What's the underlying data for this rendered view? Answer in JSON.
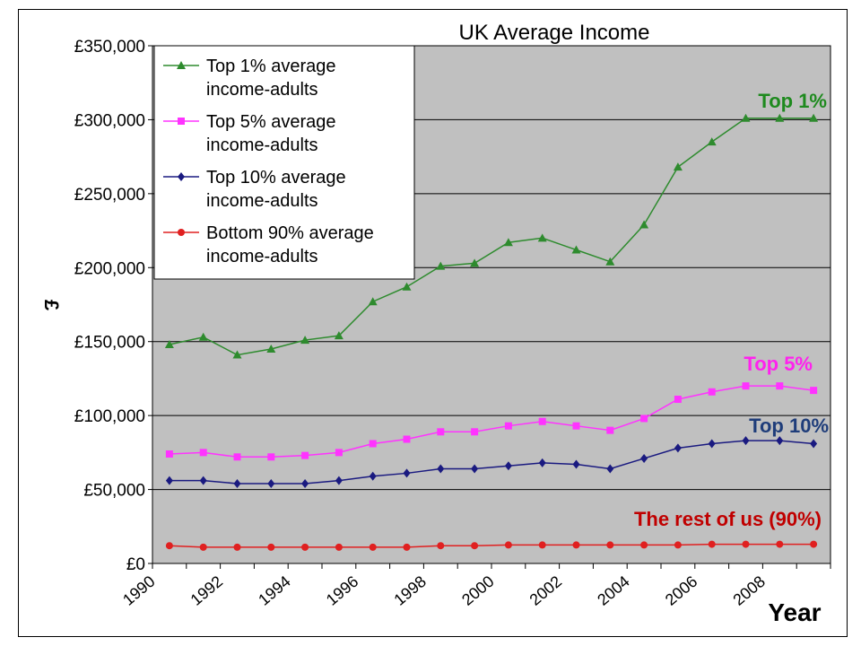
{
  "chart_data": {
    "type": "line",
    "title": "UK Average Income",
    "xlabel": "Year",
    "ylabel": "£",
    "ylim": [
      0,
      350000
    ],
    "xlim": [
      1990,
      2010
    ],
    "yticks": [
      "£0",
      "£50,000",
      "£100,000",
      "£150,000",
      "£200,000",
      "£250,000",
      "£300,000",
      "£350,000"
    ],
    "xticks": [
      "1990",
      "1992",
      "1994",
      "1996",
      "1998",
      "2000",
      "2002",
      "2004",
      "2006",
      "2008"
    ],
    "grid": true,
    "plot_background": "#c0c0c0",
    "legend_position": "top-left",
    "x": [
      1990.5,
      1991.5,
      1992.5,
      1993.5,
      1994.5,
      1995.5,
      1996.5,
      1997.5,
      1998.5,
      1999.5,
      2000.5,
      2001.5,
      2002.5,
      2003.5,
      2004.5,
      2005.5,
      2006.5,
      2007.5,
      2008.5,
      2009.5
    ],
    "series": [
      {
        "name": "Top 1% average income-adults",
        "legend_lines": [
          "Top 1% average",
          "income-adults"
        ],
        "annotation": "Top 1%",
        "color": "#2e8b2e",
        "label_color": "#1e8a1e",
        "marker": "triangle",
        "values": [
          148000,
          153000,
          141000,
          145000,
          151000,
          154000,
          177000,
          187000,
          201000,
          203000,
          217000,
          220000,
          212000,
          204000,
          229000,
          268000,
          285000,
          301000,
          301000,
          301000
        ]
      },
      {
        "name": "Top 5% average income-adults",
        "legend_lines": [
          "Top 5% average",
          "income-adults"
        ],
        "annotation": "Top 5%",
        "color": "#ff33ff",
        "label_color": "#ff22ee",
        "marker": "square",
        "values": [
          74000,
          75000,
          72000,
          72000,
          73000,
          75000,
          81000,
          84000,
          89000,
          89000,
          93000,
          96000,
          93000,
          90000,
          98000,
          111000,
          116000,
          120000,
          120000,
          117000
        ]
      },
      {
        "name": "Top 10% average income-adults",
        "legend_lines": [
          "Top 10% average",
          "income-adults"
        ],
        "annotation": "Top 10%",
        "color": "#1a1a80",
        "label_color": "#1f3d7a",
        "marker": "diamond",
        "values": [
          56000,
          56000,
          54000,
          54000,
          54000,
          56000,
          59000,
          61000,
          64000,
          64000,
          66000,
          68000,
          67000,
          64000,
          71000,
          78000,
          81000,
          83000,
          83000,
          81000
        ]
      },
      {
        "name": "Bottom 90% average income-adults",
        "legend_lines": [
          "Bottom 90% average",
          "income-adults"
        ],
        "annotation": "The rest of us (90%)",
        "color": "#e02020",
        "label_color": "#c00000",
        "marker": "circle",
        "values": [
          12000,
          11000,
          11000,
          11000,
          11000,
          11000,
          11000,
          11000,
          12000,
          12000,
          12500,
          12500,
          12500,
          12500,
          12500,
          12500,
          13000,
          13000,
          13000,
          13000
        ]
      }
    ]
  }
}
